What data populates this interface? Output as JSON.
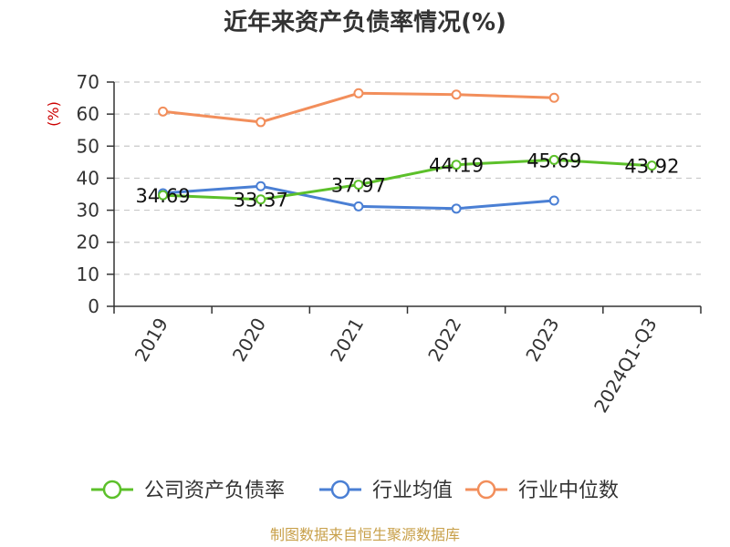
{
  "chart_data": {
    "type": "line",
    "title": "近年来资产负债率情况(%)",
    "ylabel": "(%)",
    "xlabel": "",
    "ylim": [
      0,
      70
    ],
    "yticks": [
      0,
      10,
      20,
      30,
      40,
      50,
      60,
      70
    ],
    "grid": true,
    "legend_position": "bottom",
    "categories": [
      "2019",
      "2020",
      "2021",
      "2022",
      "2023",
      "2024Q1-Q3"
    ],
    "series": [
      {
        "name": "公司资产负债率",
        "color": "#5cc02a",
        "values": [
          34.69,
          33.37,
          37.97,
          44.19,
          45.69,
          43.92
        ],
        "labels": [
          "34.69",
          "33.37",
          "37.97",
          "44.19",
          "45.69",
          "43.92"
        ]
      },
      {
        "name": "行业均值",
        "color": "#4a7fd4",
        "values": [
          35.3,
          37.5,
          31.2,
          30.5,
          33.0,
          null
        ]
      },
      {
        "name": "行业中位数",
        "color": "#f28e5b",
        "values": [
          60.8,
          57.5,
          66.5,
          66.1,
          65.1,
          null
        ]
      }
    ]
  },
  "source_note": "制图数据来自恒生聚源数据库"
}
